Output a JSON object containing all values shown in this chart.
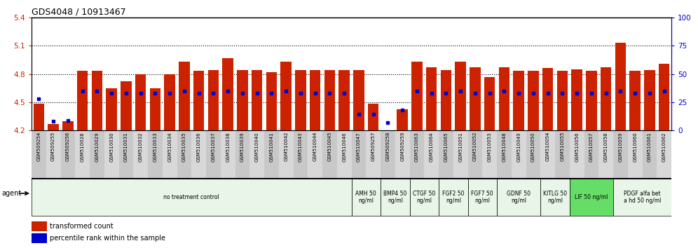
{
  "title": "GDS4048 / 10913467",
  "ylim_left": [
    4.2,
    5.4
  ],
  "ylim_right": [
    0,
    100
  ],
  "yticks_left": [
    4.2,
    4.5,
    4.8,
    5.1,
    5.4
  ],
  "yticks_right": [
    0,
    25,
    50,
    75,
    100
  ],
  "bar_color": "#cc2200",
  "marker_color": "#0000cc",
  "axis_color_left": "#cc2200",
  "axis_color_right": "#0000cc",
  "bar_bottom": 4.2,
  "samples": [
    "GSM509254",
    "GSM509255",
    "GSM509256",
    "GSM510028",
    "GSM510029",
    "GSM510030",
    "GSM510031",
    "GSM510032",
    "GSM510033",
    "GSM510034",
    "GSM510035",
    "GSM510036",
    "GSM510037",
    "GSM510038",
    "GSM510039",
    "GSM510040",
    "GSM510041",
    "GSM510042",
    "GSM510043",
    "GSM510044",
    "GSM510045",
    "GSM510046",
    "GSM510047",
    "GSM509257",
    "GSM509258",
    "GSM509259",
    "GSM510063",
    "GSM510064",
    "GSM510065",
    "GSM510051",
    "GSM510052",
    "GSM510053",
    "GSM510048",
    "GSM510049",
    "GSM510050",
    "GSM510054",
    "GSM510055",
    "GSM510056",
    "GSM510057",
    "GSM510058",
    "GSM510059",
    "GSM510060",
    "GSM510061",
    "GSM510062"
  ],
  "bar_heights": [
    4.48,
    4.27,
    4.3,
    4.83,
    4.83,
    4.65,
    4.72,
    4.8,
    4.65,
    4.8,
    4.93,
    4.83,
    4.84,
    4.97,
    4.84,
    4.84,
    4.82,
    4.93,
    4.84,
    4.84,
    4.84,
    4.84,
    4.84,
    4.48,
    4.2,
    4.42,
    4.93,
    4.87,
    4.84,
    4.93,
    4.87,
    4.77,
    4.87,
    4.83,
    4.83,
    4.86,
    4.83,
    4.85,
    4.83,
    4.87,
    5.13,
    4.83,
    4.84,
    4.91
  ],
  "percentile_vals": [
    28,
    8,
    9,
    35,
    35,
    33,
    33,
    33,
    33,
    33,
    35,
    33,
    33,
    35,
    33,
    33,
    33,
    35,
    33,
    33,
    33,
    33,
    14,
    14,
    7,
    18,
    35,
    33,
    33,
    35,
    33,
    33,
    35,
    33,
    33,
    33,
    33,
    33,
    33,
    33,
    35,
    33,
    33,
    35
  ],
  "agent_groups": [
    {
      "label": "no treatment control",
      "start": 0,
      "end": 22,
      "color": "#e8f5e8"
    },
    {
      "label": "AMH 50\nng/ml",
      "start": 22,
      "end": 24,
      "color": "#e8f5e8"
    },
    {
      "label": "BMP4 50\nng/ml",
      "start": 24,
      "end": 26,
      "color": "#e8f5e8"
    },
    {
      "label": "CTGF 50\nng/ml",
      "start": 26,
      "end": 28,
      "color": "#e8f5e8"
    },
    {
      "label": "FGF2 50\nng/ml",
      "start": 28,
      "end": 30,
      "color": "#e8f5e8"
    },
    {
      "label": "FGF7 50\nng/ml",
      "start": 30,
      "end": 32,
      "color": "#e8f5e8"
    },
    {
      "label": "GDNF 50\nng/ml",
      "start": 32,
      "end": 35,
      "color": "#e8f5e8"
    },
    {
      "label": "KITLG 50\nng/ml",
      "start": 35,
      "end": 37,
      "color": "#e8f5e8"
    },
    {
      "label": "LIF 50 ng/ml",
      "start": 37,
      "end": 40,
      "color": "#66dd66"
    },
    {
      "label": "PDGF alfa bet\na hd 50 ng/ml",
      "start": 40,
      "end": 44,
      "color": "#e8f5e8"
    }
  ],
  "legend_items": [
    {
      "label": "transformed count",
      "color": "#cc2200"
    },
    {
      "label": "percentile rank within the sample",
      "color": "#0000cc"
    }
  ]
}
